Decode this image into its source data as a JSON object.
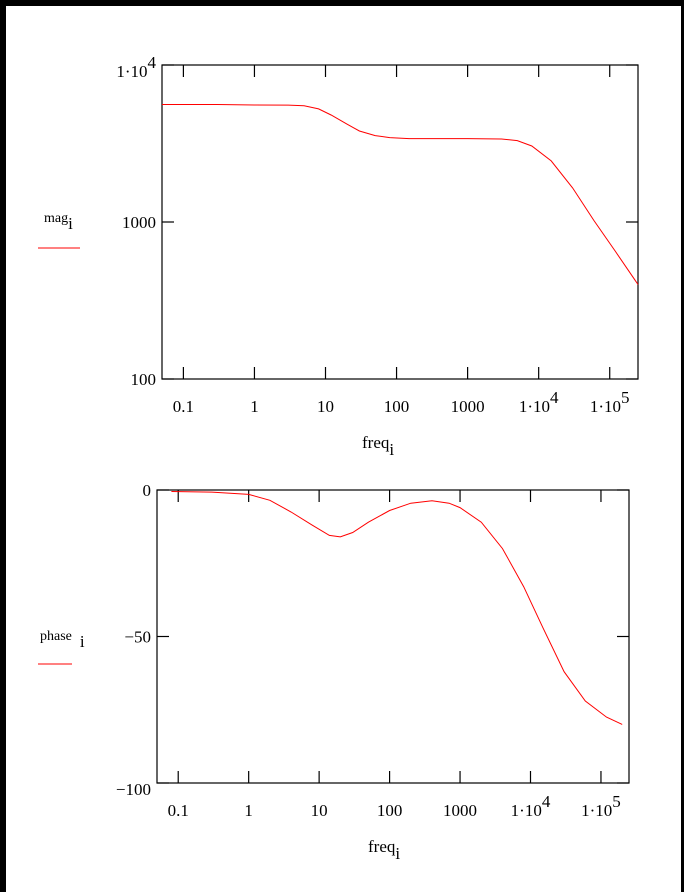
{
  "chart_data": [
    {
      "type": "line",
      "xscale": "log",
      "yscale": "log",
      "xlim": [
        0.05,
        250000
      ],
      "ylim": [
        100,
        10000
      ],
      "x_ticks": [
        0.1,
        1,
        10,
        100,
        1000,
        10000,
        100000
      ],
      "x_tick_labels": [
        "0.1",
        "1",
        "10",
        "100",
        "1000",
        "1·10",
        "1·10"
      ],
      "x_tick_exponents": [
        "",
        "",
        "",
        "",
        "",
        "4",
        "5"
      ],
      "y_ticks": [
        100,
        1000,
        10000
      ],
      "y_tick_labels": [
        "100",
        "1000",
        "1·10"
      ],
      "y_tick_exponents": [
        "",
        "",
        "4"
      ],
      "xlabel": "freq",
      "xlabel_sub": "i",
      "ylabel": "mag",
      "ylabel_sub": "i",
      "series_color": "#ff0000",
      "series": [
        {
          "x": [
            0.05,
            0.3,
            1,
            3,
            5,
            8,
            12,
            20,
            30,
            50,
            80,
            150,
            300,
            1000,
            3000,
            5000,
            8000,
            15000,
            30000,
            60000,
            120000,
            250000
          ],
          "y": [
            5600,
            5600,
            5560,
            5550,
            5500,
            5250,
            4800,
            4200,
            3800,
            3550,
            3450,
            3400,
            3400,
            3400,
            3380,
            3300,
            3050,
            2450,
            1650,
            1020,
            650,
            400
          ]
        }
      ]
    },
    {
      "type": "line",
      "xscale": "log",
      "yscale": "linear",
      "xlim": [
        0.05,
        250000
      ],
      "ylim": [
        -100,
        0
      ],
      "x_ticks": [
        0.1,
        1,
        10,
        100,
        1000,
        10000,
        100000
      ],
      "x_tick_labels": [
        "0.1",
        "1",
        "10",
        "100",
        "1000",
        "1·10",
        "1·10"
      ],
      "x_tick_exponents": [
        "",
        "",
        "",
        "",
        "",
        "4",
        "5"
      ],
      "y_ticks": [
        -100,
        -50,
        0
      ],
      "y_tick_labels": [
        "−100",
        "−50",
        "0"
      ],
      "xlabel": "freq",
      "xlabel_sub": "i",
      "ylabel": "phase",
      "ylabel_sub": "i",
      "series_color": "#ff0000",
      "series": [
        {
          "x": [
            0.08,
            0.3,
            1,
            2,
            4,
            8,
            14,
            20,
            30,
            50,
            100,
            200,
            400,
            700,
            1000,
            2000,
            4000,
            8000,
            15000,
            30000,
            60000,
            120000,
            200000
          ],
          "y": [
            -0.5,
            -0.7,
            -1.5,
            -3.5,
            -7.5,
            -12,
            -15.5,
            -16,
            -14.5,
            -11,
            -7,
            -4.5,
            -3.7,
            -4.5,
            -6,
            -11,
            -20,
            -33,
            -47,
            -62,
            -72,
            -77.5,
            -80
          ]
        }
      ]
    }
  ]
}
